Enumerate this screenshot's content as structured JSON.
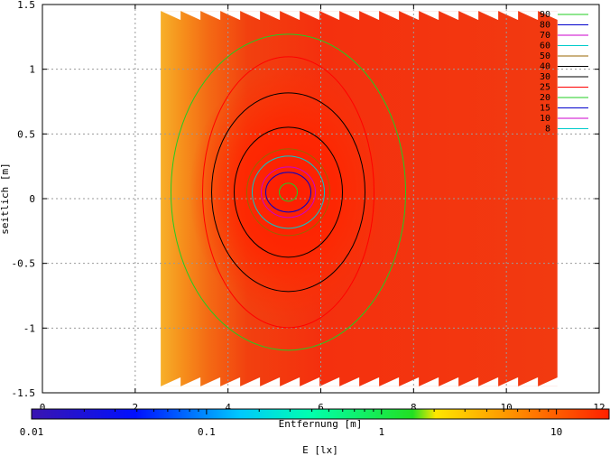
{
  "chart_data": {
    "type": "heatmap",
    "title": "",
    "xlabel": "Entfernung [m]",
    "ylabel": "seitlich [m]",
    "xlim": [
      0,
      12
    ],
    "ylim": [
      -1.5,
      1.5
    ],
    "x_ticks": [
      "0",
      "2",
      "4",
      "6",
      "8",
      "10",
      "12"
    ],
    "x_tick_values": [
      0,
      2,
      4,
      6,
      8,
      10,
      12
    ],
    "y_ticks": [
      "1.5",
      "1",
      "0.5",
      "0",
      "-0.5",
      "-1",
      "-1.5"
    ],
    "y_tick_values": [
      1.5,
      1,
      0.5,
      0,
      -0.5,
      -1,
      -1.5
    ],
    "grid": true,
    "colorbar": {
      "label": "E [lx]",
      "scale": "log",
      "range": [
        0.01,
        20
      ],
      "tick_labels": [
        "0.01",
        "0.1",
        "1",
        "10"
      ],
      "tick_values": [
        0.01,
        0.1,
        1,
        10
      ]
    },
    "legend_position": "top-right",
    "contour_levels": [
      {
        "label": "90",
        "value": 90,
        "color": "#22cc22"
      },
      {
        "label": "80",
        "value": 80,
        "color": "#0000cc"
      },
      {
        "label": "70",
        "value": 70,
        "color": "#cc00cc"
      },
      {
        "label": "60",
        "value": 60,
        "color": "#00cccc"
      },
      {
        "label": "50",
        "value": 50,
        "color": "#996600"
      },
      {
        "label": "40",
        "value": 40,
        "color": "#000000"
      },
      {
        "label": "30",
        "value": 30,
        "color": "#000000"
      },
      {
        "label": "25",
        "value": 25,
        "color": "#ff0000"
      },
      {
        "label": "20",
        "value": 20,
        "color": "#22cc22"
      },
      {
        "label": "15",
        "value": 15,
        "color": "#0000cc"
      },
      {
        "label": "10",
        "value": 10,
        "color": "#cc00cc"
      },
      {
        "label": "8",
        "value": 8,
        "color": "#00cccc"
      }
    ],
    "data_extent": {
      "x": [
        2.55,
        11.1
      ],
      "y": [
        -1.45,
        1.45
      ]
    },
    "peak": {
      "x": 5.3,
      "y": 0.05,
      "value": 90
    }
  }
}
